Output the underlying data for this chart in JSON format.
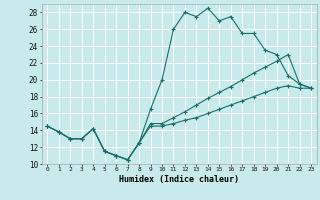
{
  "xlabel": "Humidex (Indice chaleur)",
  "background_color": "#c8eaea",
  "grid_color": "#ffffff",
  "line_color": "#1a6e6a",
  "xlim": [
    -0.5,
    23.5
  ],
  "ylim": [
    10,
    29
  ],
  "xticks": [
    0,
    1,
    2,
    3,
    4,
    5,
    6,
    7,
    8,
    9,
    10,
    11,
    12,
    13,
    14,
    15,
    16,
    17,
    18,
    19,
    20,
    21,
    22,
    23
  ],
  "yticks": [
    10,
    12,
    14,
    16,
    18,
    20,
    22,
    24,
    26,
    28
  ],
  "line1_x": [
    0,
    1,
    2,
    3,
    4,
    5,
    6,
    7,
    8,
    9,
    10,
    11,
    12,
    13,
    14,
    15,
    16,
    17,
    18,
    19,
    20,
    21,
    22,
    23
  ],
  "line1_y": [
    14.5,
    13.8,
    13.0,
    13.0,
    14.2,
    11.5,
    11.0,
    10.5,
    12.5,
    16.5,
    20.0,
    26.0,
    28.0,
    27.5,
    28.5,
    27.0,
    27.5,
    25.5,
    25.5,
    23.5,
    23.0,
    20.5,
    19.5,
    19.0
  ],
  "line2_x": [
    0,
    1,
    2,
    3,
    4,
    5,
    6,
    7,
    8,
    9,
    10,
    11,
    12,
    13,
    14,
    15,
    16,
    17,
    18,
    19,
    20,
    21,
    22,
    23
  ],
  "line2_y": [
    14.5,
    13.8,
    13.0,
    13.0,
    14.2,
    11.5,
    11.0,
    10.5,
    12.5,
    14.5,
    14.5,
    14.8,
    15.2,
    15.5,
    16.0,
    16.5,
    17.0,
    17.5,
    18.0,
    18.5,
    19.0,
    19.3,
    19.0,
    19.0
  ],
  "line3_x": [
    0,
    1,
    2,
    3,
    4,
    5,
    6,
    7,
    8,
    9,
    10,
    11,
    12,
    13,
    14,
    15,
    16,
    17,
    18,
    19,
    20,
    21,
    22,
    23
  ],
  "line3_y": [
    14.5,
    13.8,
    13.0,
    13.0,
    14.2,
    11.5,
    11.0,
    10.5,
    12.5,
    14.8,
    14.8,
    15.5,
    16.2,
    17.0,
    17.8,
    18.5,
    19.2,
    20.0,
    20.8,
    21.5,
    22.2,
    23.0,
    19.5,
    19.0
  ]
}
